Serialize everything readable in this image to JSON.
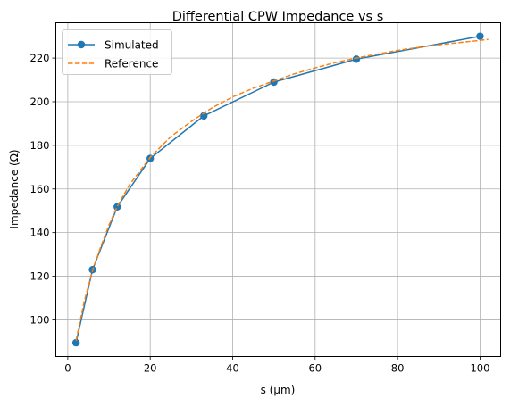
{
  "chart_data": {
    "type": "line",
    "title": "Differential CPW Impedance vs s",
    "xlabel": "s (μm)",
    "ylabel": "Impedance (Ω)",
    "xlim": [
      -2.9,
      105.0
    ],
    "ylim": [
      83.2,
      236.2
    ],
    "x_ticks": [
      0,
      20,
      40,
      60,
      80,
      100
    ],
    "y_ticks": [
      100,
      120,
      140,
      160,
      180,
      200,
      220
    ],
    "grid": true,
    "legend_position": "upper-left",
    "series": [
      {
        "name": "Simulated",
        "style": "solid",
        "marker": "circle",
        "color": "#1f77b4",
        "x": [
          2,
          6,
          12,
          20,
          33,
          50,
          70,
          100
        ],
        "y": [
          89.5,
          123.0,
          151.8,
          174.0,
          193.5,
          209.0,
          219.5,
          230.0
        ]
      },
      {
        "name": "Reference",
        "style": "dashed",
        "marker": "none",
        "color": "#ff7f0e",
        "x": [
          2,
          4,
          6,
          8,
          10,
          12,
          15,
          20,
          25,
          30,
          35,
          40,
          45,
          50,
          55,
          60,
          65,
          70,
          75,
          80,
          85,
          90,
          95,
          100,
          102
        ],
        "y": [
          90.5,
          108.5,
          122.5,
          133.5,
          143.5,
          152.0,
          162.0,
          174.5,
          184.0,
          191.0,
          197.2,
          202.2,
          206.2,
          209.5,
          212.8,
          215.5,
          218.0,
          220.0,
          221.8,
          223.5,
          224.9,
          226.1,
          227.1,
          228.1,
          228.6
        ]
      }
    ]
  }
}
